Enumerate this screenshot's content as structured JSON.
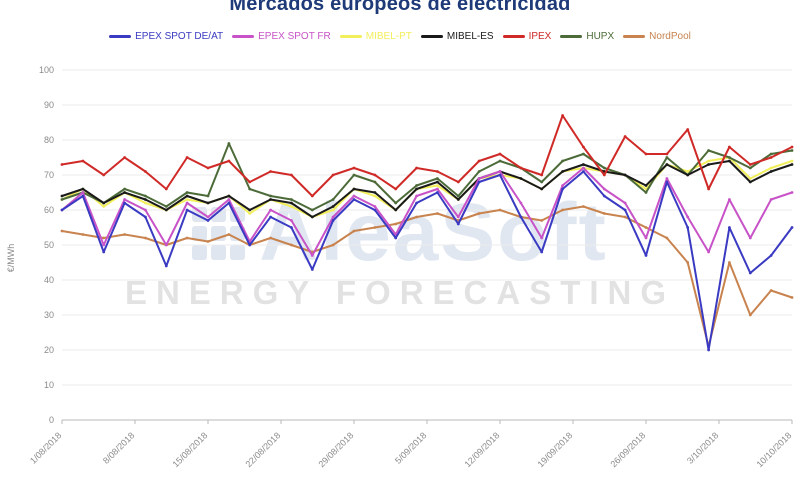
{
  "title": "Mercados europeos de electricidad",
  "watermark": {
    "brand": "AleaSoft",
    "tagline": "ENERGY FORECASTING"
  },
  "chart_data": {
    "type": "line",
    "title": "Mercados europeos de electricidad",
    "xlabel": "",
    "ylabel": "€/MWh",
    "ylim": [
      0,
      100
    ],
    "y_ticks": [
      0,
      10,
      20,
      30,
      40,
      50,
      60,
      70,
      80,
      90,
      100
    ],
    "grid": true,
    "legend_position": "top",
    "days_span": 70,
    "point_day_step": 2,
    "x_tick_day_positions": [
      0,
      7,
      14,
      21,
      28,
      35,
      42,
      49,
      56,
      63,
      70
    ],
    "x_tick_labels": [
      "1/08/2018",
      "8/08/2018",
      "15/08/2018",
      "22/08/2018",
      "29/08/2018",
      "5/09/2018",
      "12/09/2018",
      "19/09/2018",
      "26/09/2018",
      "3/10/2018",
      "10/10/2018"
    ],
    "dates": [
      "1/08/2018",
      "3/08/2018",
      "5/08/2018",
      "7/08/2018",
      "9/08/2018",
      "11/08/2018",
      "13/08/2018",
      "15/08/2018",
      "17/08/2018",
      "19/08/2018",
      "21/08/2018",
      "23/08/2018",
      "25/08/2018",
      "27/08/2018",
      "29/08/2018",
      "31/08/2018",
      "2/09/2018",
      "4/09/2018",
      "6/09/2018",
      "8/09/2018",
      "10/09/2018",
      "12/09/2018",
      "14/09/2018",
      "16/09/2018",
      "18/09/2018",
      "20/09/2018",
      "22/09/2018",
      "24/09/2018",
      "26/09/2018",
      "28/09/2018",
      "30/09/2018",
      "2/10/2018",
      "4/10/2018",
      "6/10/2018",
      "8/10/2018",
      "10/10/2018"
    ],
    "series": [
      {
        "name": "MIBEL-PT",
        "color": "#f2ef5c",
        "values": [
          63,
          66,
          61,
          65,
          62,
          60,
          63,
          62,
          64,
          59,
          63,
          61,
          58,
          60,
          66,
          64,
          60,
          66,
          67,
          63,
          69,
          70,
          69,
          66,
          71,
          72,
          71,
          70,
          66,
          73,
          71,
          74,
          75,
          69,
          72,
          74
        ]
      },
      {
        "name": "NordPool",
        "color": "#c8834e",
        "values": [
          54,
          53,
          52,
          53,
          52,
          50,
          52,
          51,
          53,
          50,
          52,
          50,
          48,
          50,
          54,
          55,
          56,
          58,
          59,
          57,
          59,
          60,
          58,
          57,
          60,
          61,
          59,
          58,
          55,
          52,
          45,
          21,
          45,
          30,
          37,
          35
        ]
      },
      {
        "name": "HUPX",
        "color": "#4c6b38",
        "values": [
          63,
          65,
          62,
          66,
          64,
          61,
          65,
          64,
          79,
          66,
          64,
          63,
          60,
          63,
          70,
          68,
          62,
          67,
          69,
          64,
          71,
          74,
          72,
          68,
          74,
          76,
          72,
          70,
          65,
          75,
          70,
          77,
          75,
          72,
          76,
          77
        ]
      },
      {
        "name": "MIBEL-ES",
        "color": "#1a1a1a",
        "values": [
          64,
          66,
          62,
          65,
          63,
          60,
          64,
          62,
          64,
          60,
          63,
          62,
          58,
          61,
          66,
          65,
          60,
          66,
          68,
          63,
          69,
          71,
          69,
          66,
          71,
          73,
          71,
          70,
          67,
          73,
          70,
          73,
          74,
          68,
          71,
          73
        ]
      },
      {
        "name": "IPEX",
        "color": "#cf2a27",
        "values": [
          73,
          74,
          70,
          75,
          71,
          66,
          75,
          72,
          74,
          68,
          71,
          70,
          64,
          70,
          72,
          70,
          66,
          72,
          71,
          68,
          74,
          76,
          72,
          70,
          87,
          78,
          70,
          81,
          76,
          76,
          83,
          66,
          78,
          73,
          75,
          78
        ]
      },
      {
        "name": "EPEX SPOT FR",
        "color": "#c853c8",
        "values": [
          60,
          65,
          50,
          63,
          60,
          50,
          62,
          58,
          63,
          51,
          60,
          57,
          47,
          58,
          64,
          61,
          53,
          64,
          66,
          58,
          69,
          71,
          62,
          52,
          67,
          72,
          66,
          62,
          52,
          69,
          58,
          48,
          63,
          52,
          63,
          65
        ]
      },
      {
        "name": "EPEX SPOT DE/AT",
        "color": "#3a3ac2",
        "values": [
          60,
          64,
          48,
          62,
          58,
          44,
          60,
          57,
          62,
          50,
          58,
          55,
          43,
          57,
          63,
          60,
          52,
          62,
          65,
          56,
          68,
          70,
          58,
          48,
          66,
          71,
          64,
          60,
          47,
          68,
          55,
          20,
          55,
          42,
          47,
          55
        ]
      }
    ],
    "legend_order": [
      6,
      5,
      0,
      3,
      4,
      2,
      1
    ],
    "axis_color": "#b9b9b9",
    "grid_color": "#ebebeb",
    "tick_text_color": "#8a8a8a"
  }
}
